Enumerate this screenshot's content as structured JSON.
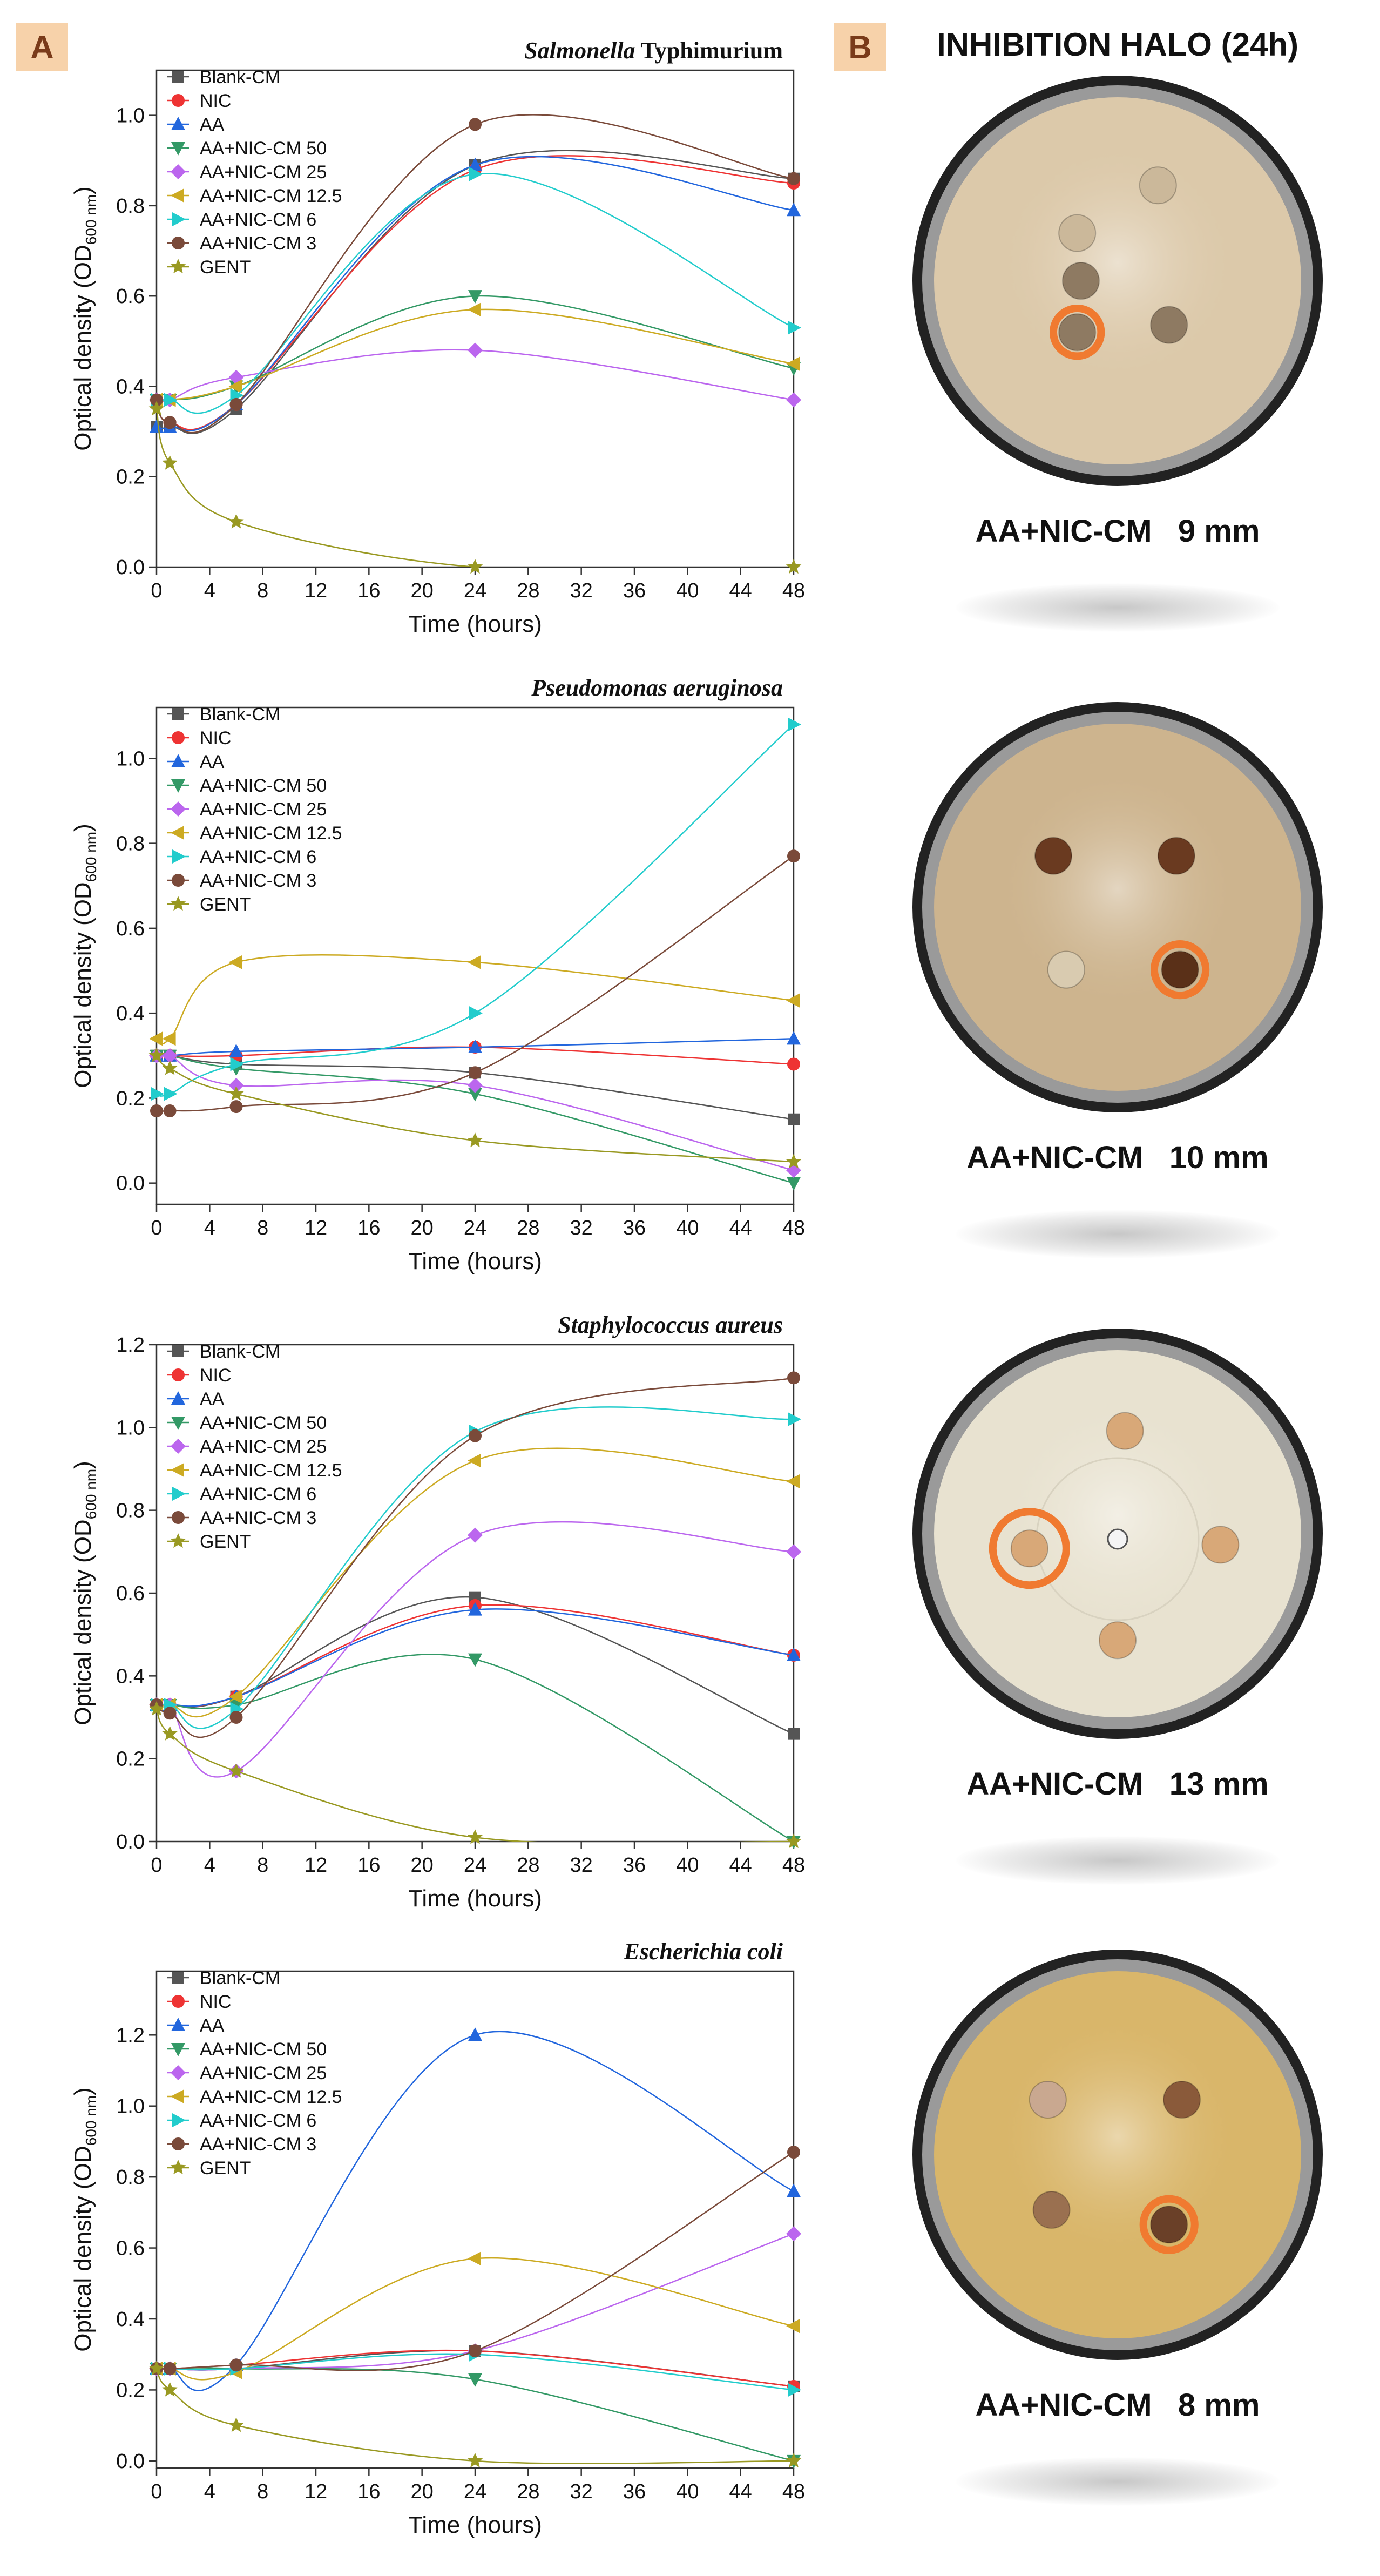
{
  "panel_a_label": "A",
  "panel_b_label": "B",
  "halo_title": "INHIBITION HALO (24h)",
  "legend": [
    "Blank-CM",
    "NIC",
    "AA",
    "AA+NIC-CM 50",
    "AA+NIC-CM 25",
    "AA+NIC-CM 12.5",
    "AA+NIC-CM 6",
    "AA+NIC-CM 3",
    "GENT"
  ],
  "series_colors": [
    "#555555",
    "#ee3333",
    "#2266dd",
    "#339966",
    "#bb66ee",
    "#ccaa22",
    "#22cccc",
    "#7a4a3a",
    "#999922"
  ],
  "chart_data": [
    {
      "type": "line",
      "title_italic": "Salmonella",
      "title_rest": " Typhimurium",
      "xlabel": "Time (hours)",
      "ylabel": "Optical density (OD",
      "ylabel_sub": "600 nm",
      "ylabel_close": ")",
      "x": [
        0,
        1,
        6,
        24,
        48
      ],
      "xlim": [
        0,
        48
      ],
      "xticks": [
        "0",
        "4",
        "8",
        "12",
        "16",
        "20",
        "24",
        "28",
        "32",
        "36",
        "40",
        "44",
        "48"
      ],
      "ylim": [
        0,
        1.1
      ],
      "yticks": [
        "0.0",
        "0.2",
        "0.4",
        "0.6",
        "0.8",
        "1.0"
      ],
      "series": [
        {
          "name": "Blank-CM",
          "values": [
            0.31,
            0.31,
            0.35,
            0.89,
            0.86
          ]
        },
        {
          "name": "NIC",
          "values": [
            0.37,
            0.32,
            0.36,
            0.88,
            0.85
          ]
        },
        {
          "name": "AA",
          "values": [
            0.31,
            0.31,
            0.36,
            0.89,
            0.79
          ]
        },
        {
          "name": "AA+NIC-CM 50",
          "values": [
            0.37,
            0.37,
            0.4,
            0.6,
            0.44
          ]
        },
        {
          "name": "AA+NIC-CM 25",
          "values": [
            0.37,
            0.37,
            0.42,
            0.48,
            0.37
          ]
        },
        {
          "name": "AA+NIC-CM 12.5",
          "values": [
            0.37,
            0.37,
            0.4,
            0.57,
            0.45
          ]
        },
        {
          "name": "AA+NIC-CM 6",
          "values": [
            0.37,
            0.37,
            0.38,
            0.87,
            0.53
          ]
        },
        {
          "name": "AA+NIC-CM 3",
          "values": [
            0.37,
            0.32,
            0.36,
            0.98,
            0.86
          ]
        },
        {
          "name": "GENT",
          "values": [
            0.35,
            0.23,
            0.1,
            0.0,
            0.0
          ]
        }
      ]
    },
    {
      "type": "line",
      "title_italic": "Pseudomonas aeruginosa",
      "title_rest": "",
      "xlabel": "Time (hours)",
      "ylabel": "Optical density (OD",
      "ylabel_sub": "600 nm",
      "ylabel_close": ")",
      "x": [
        0,
        1,
        6,
        24,
        48
      ],
      "xlim": [
        0,
        48
      ],
      "xticks": [
        "0",
        "4",
        "8",
        "12",
        "16",
        "20",
        "24",
        "28",
        "32",
        "36",
        "40",
        "44",
        "48"
      ],
      "ylim": [
        -0.05,
        1.12
      ],
      "yticks": [
        "0.0",
        "0.2",
        "0.4",
        "0.6",
        "0.8",
        "1.0"
      ],
      "series": [
        {
          "name": "Blank-CM",
          "values": [
            0.3,
            0.3,
            0.28,
            0.26,
            0.15
          ]
        },
        {
          "name": "NIC",
          "values": [
            0.3,
            0.3,
            0.3,
            0.32,
            0.28
          ]
        },
        {
          "name": "AA",
          "values": [
            0.3,
            0.3,
            0.31,
            0.32,
            0.34
          ]
        },
        {
          "name": "AA+NIC-CM 50",
          "values": [
            0.3,
            0.3,
            0.27,
            0.21,
            0.0
          ]
        },
        {
          "name": "AA+NIC-CM 25",
          "values": [
            0.3,
            0.3,
            0.23,
            0.23,
            0.03
          ]
        },
        {
          "name": "AA+NIC-CM 12.5",
          "values": [
            0.34,
            0.34,
            0.52,
            0.52,
            0.43
          ]
        },
        {
          "name": "AA+NIC-CM 6",
          "values": [
            0.21,
            0.21,
            0.28,
            0.4,
            1.08
          ]
        },
        {
          "name": "AA+NIC-CM 3",
          "values": [
            0.17,
            0.17,
            0.18,
            0.26,
            0.77
          ]
        },
        {
          "name": "GENT",
          "values": [
            0.3,
            0.27,
            0.21,
            0.1,
            0.05
          ]
        }
      ]
    },
    {
      "type": "line",
      "title_italic": "Staphylococcus aureus",
      "title_rest": "",
      "xlabel": "Time (hours)",
      "ylabel": "Optical density (OD",
      "ylabel_sub": "600 nm",
      "ylabel_close": ")",
      "x": [
        0,
        1,
        6,
        24,
        48
      ],
      "xlim": [
        0,
        48
      ],
      "xticks": [
        "0",
        "4",
        "8",
        "12",
        "16",
        "20",
        "24",
        "28",
        "32",
        "36",
        "40",
        "44",
        "48"
      ],
      "ylim": [
        0,
        1.2
      ],
      "yticks": [
        "0.0",
        "0.2",
        "0.4",
        "0.6",
        "0.8",
        "1.0",
        "1.2"
      ],
      "series": [
        {
          "name": "Blank-CM",
          "values": [
            0.33,
            0.33,
            0.35,
            0.59,
            0.26
          ]
        },
        {
          "name": "NIC",
          "values": [
            0.33,
            0.33,
            0.35,
            0.57,
            0.45
          ]
        },
        {
          "name": "AA",
          "values": [
            0.33,
            0.33,
            0.35,
            0.56,
            0.45
          ]
        },
        {
          "name": "AA+NIC-CM 50",
          "values": [
            0.33,
            0.33,
            0.33,
            0.44,
            0.0
          ]
        },
        {
          "name": "AA+NIC-CM 25",
          "values": [
            0.33,
            0.33,
            0.17,
            0.74,
            0.7
          ]
        },
        {
          "name": "AA+NIC-CM 12.5",
          "values": [
            0.33,
            0.33,
            0.35,
            0.92,
            0.87
          ]
        },
        {
          "name": "AA+NIC-CM 6",
          "values": [
            0.33,
            0.33,
            0.32,
            0.99,
            1.02
          ]
        },
        {
          "name": "AA+NIC-CM 3",
          "values": [
            0.33,
            0.31,
            0.3,
            0.98,
            1.12
          ]
        },
        {
          "name": "GENT",
          "values": [
            0.32,
            0.26,
            0.17,
            0.01,
            0.0
          ]
        }
      ]
    },
    {
      "type": "line",
      "title_italic": "Escherichia coli",
      "title_rest": "",
      "xlabel": "Time (hours)",
      "ylabel": "Optical density (OD",
      "ylabel_sub": "600 nm",
      "ylabel_close": ")",
      "x": [
        0,
        1,
        6,
        24,
        48
      ],
      "xlim": [
        0,
        48
      ],
      "xticks": [
        "0",
        "4",
        "8",
        "12",
        "16",
        "20",
        "24",
        "28",
        "32",
        "36",
        "40",
        "44",
        "48"
      ],
      "ylim": [
        -0.02,
        1.38
      ],
      "yticks": [
        "0.0",
        "0.2",
        "0.4",
        "0.6",
        "0.8",
        "1.0",
        "1.2"
      ],
      "series": [
        {
          "name": "Blank-CM",
          "values": [
            0.26,
            0.26,
            0.26,
            0.31,
            0.21
          ]
        },
        {
          "name": "NIC",
          "values": [
            0.26,
            0.26,
            0.27,
            0.31,
            0.21
          ]
        },
        {
          "name": "AA",
          "values": [
            0.26,
            0.26,
            0.27,
            1.2,
            0.76
          ]
        },
        {
          "name": "AA+NIC-CM 50",
          "values": [
            0.26,
            0.26,
            0.26,
            0.23,
            0.0
          ]
        },
        {
          "name": "AA+NIC-CM 25",
          "values": [
            0.26,
            0.26,
            0.26,
            0.31,
            0.64
          ]
        },
        {
          "name": "AA+NIC-CM 12.5",
          "values": [
            0.26,
            0.26,
            0.25,
            0.57,
            0.38
          ]
        },
        {
          "name": "AA+NIC-CM 6",
          "values": [
            0.26,
            0.26,
            0.26,
            0.3,
            0.2
          ]
        },
        {
          "name": "AA+NIC-CM 3",
          "values": [
            0.26,
            0.26,
            0.27,
            0.31,
            0.87
          ]
        },
        {
          "name": "GENT",
          "values": [
            0.26,
            0.2,
            0.1,
            0.0,
            0.0
          ]
        }
      ]
    }
  ],
  "dishes": [
    {
      "label": "AA+NIC-CM   9 mm",
      "plate_color": "#dcc9aa",
      "halo_mm": 9
    },
    {
      "label": "AA+NIC-CM   10 mm",
      "plate_color": "#cdb48e",
      "halo_mm": 10
    },
    {
      "label": "AA+NIC-CM   13 mm",
      "plate_color": "#e8e2d0",
      "halo_mm": 13
    },
    {
      "label": "AA+NIC-CM   8 mm",
      "plate_color": "#d9b66a",
      "halo_mm": 8
    }
  ]
}
